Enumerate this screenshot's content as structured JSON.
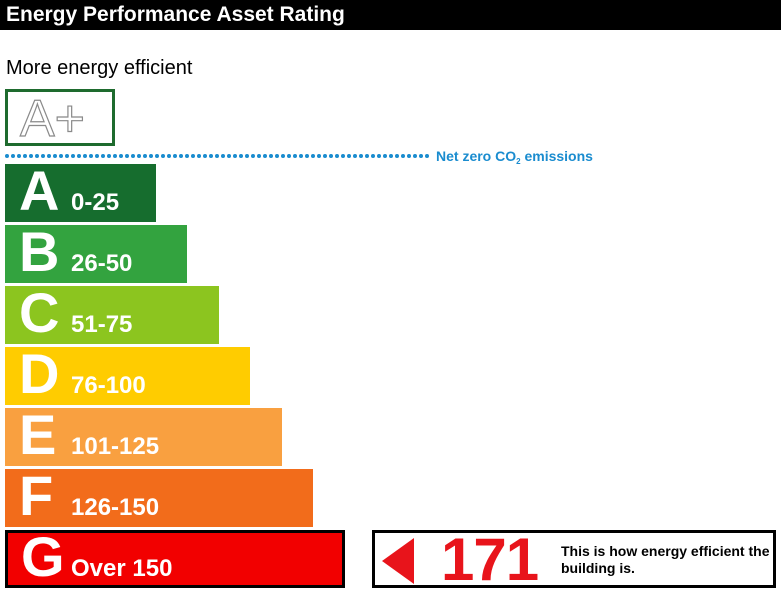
{
  "header": {
    "title": "Energy Performance Asset Rating"
  },
  "scale_label": "More energy efficient",
  "top_band": {
    "label": "A+"
  },
  "net_zero": {
    "text_before": "Net zero CO",
    "subscript": "2",
    "text_after": " emissions",
    "color": "#1a8ccf"
  },
  "chart_data": {
    "type": "bar",
    "title": "Energy Performance Asset Rating",
    "bands": [
      {
        "letter": "A",
        "range": "0-25",
        "color": "#166d2e"
      },
      {
        "letter": "B",
        "range": "26-50",
        "color": "#33a33f"
      },
      {
        "letter": "C",
        "range": "51-75",
        "color": "#8cc51f"
      },
      {
        "letter": "D",
        "range": "76-100",
        "color": "#ffcc00"
      },
      {
        "letter": "E",
        "range": "101-125",
        "color": "#f9a040"
      },
      {
        "letter": "F",
        "range": "126-150",
        "color": "#f26c1b"
      },
      {
        "letter": "G",
        "range": "Over 150",
        "color": "#f20000"
      }
    ],
    "current_rating": {
      "value": 171,
      "band": "G"
    }
  },
  "rating": {
    "value": "171",
    "description": "This is how energy efficient the building is.",
    "color": "#e8141b"
  }
}
